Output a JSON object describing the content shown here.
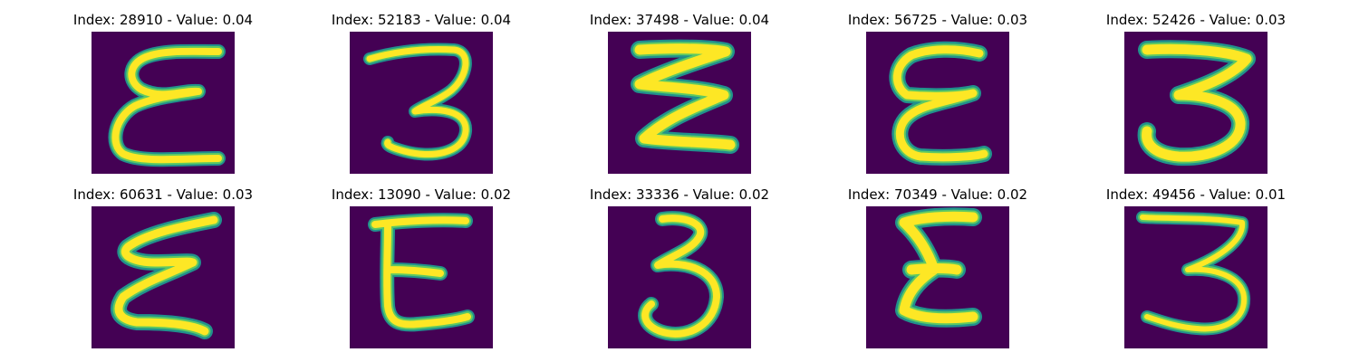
{
  "colors": {
    "background": "#440154",
    "stroke_core": "#fde725",
    "stroke_mid": "#5ec962",
    "stroke_edge": "#21918c"
  },
  "panels": [
    {
      "title": "Index: 28910 - Value: 0.04",
      "digit": "epsilon-3"
    },
    {
      "title": "Index: 52183 - Value: 0.04",
      "digit": "three"
    },
    {
      "title": "Index: 37498 - Value: 0.04",
      "digit": "zigzag-3"
    },
    {
      "title": "Index: 56725 - Value: 0.03",
      "digit": "epsilon-3"
    },
    {
      "title": "Index: 52426 - Value: 0.03",
      "digit": "three"
    },
    {
      "title": "Index: 60631 - Value: 0.03",
      "digit": "zigzag-3"
    },
    {
      "title": "Index: 13090 - Value: 0.02",
      "digit": "epsilon-3"
    },
    {
      "title": "Index: 33336 - Value: 0.02",
      "digit": "three"
    },
    {
      "title": "Index: 70349 - Value: 0.02",
      "digit": "epsilon-3"
    },
    {
      "title": "Index: 49456 - Value: 0.01",
      "digit": "three"
    }
  ]
}
